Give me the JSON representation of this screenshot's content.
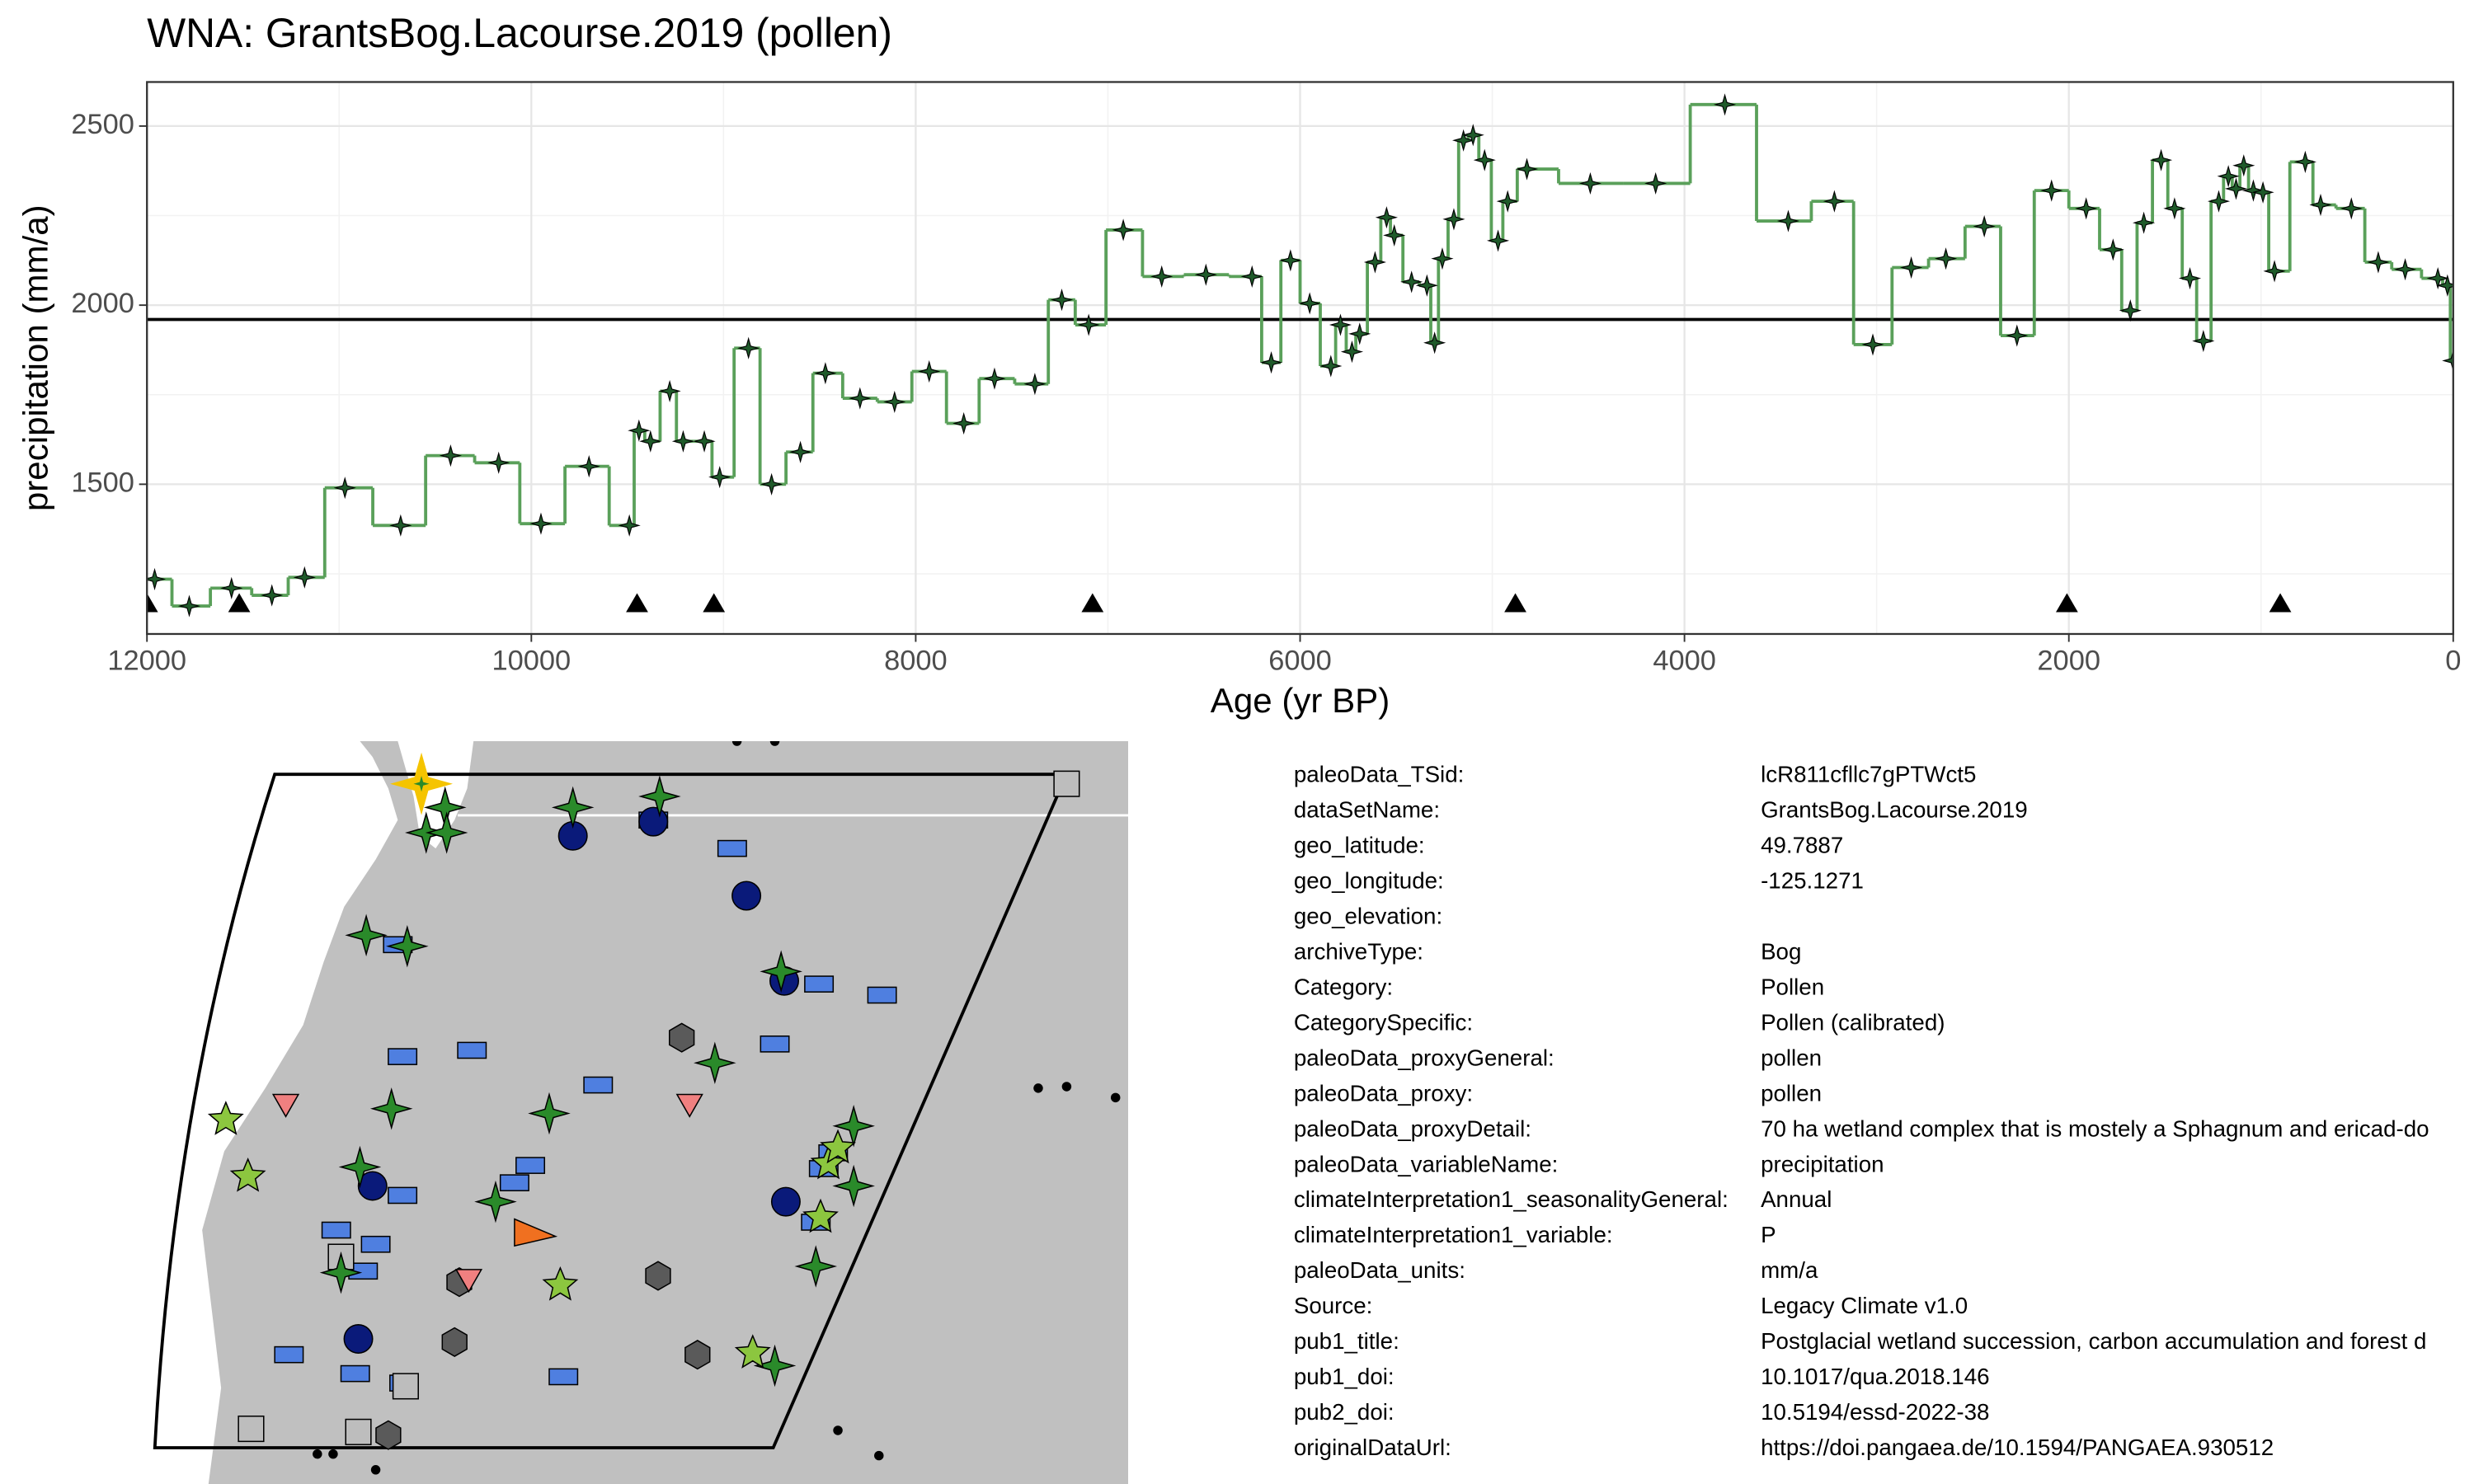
{
  "chart_data": {
    "type": "line",
    "step": true,
    "title": "WNA: GrantsBog.Lacourse.2019 (pollen)",
    "xlabel": "Age (yr BP)",
    "ylabel": "precipitation (mm/a)",
    "color": "#5aa05a",
    "marker_color": "#1f5a2a",
    "x": [
      11960,
      11780,
      11560,
      11350,
      11180,
      10970,
      10680,
      10420,
      10170,
      9950,
      9700,
      9490,
      9440,
      9380,
      9280,
      9210,
      9100,
      9020,
      8870,
      8750,
      8600,
      8470,
      8290,
      8110,
      7930,
      7750,
      7590,
      7380,
      7240,
      7100,
      6920,
      6720,
      6490,
      6250,
      6150,
      6050,
      5950,
      5840,
      5790,
      5730,
      5690,
      5610,
      5550,
      5510,
      5420,
      5340,
      5300,
      5260,
      5200,
      5150,
      5100,
      5040,
      4970,
      4920,
      4820,
      4490,
      4150,
      3790,
      3460,
      3220,
      3020,
      2820,
      2640,
      2440,
      2270,
      2090,
      1910,
      1770,
      1680,
      1610,
      1520,
      1450,
      1370,
      1300,
      1220,
      1170,
      1130,
      1090,
      1040,
      990,
      930,
      770,
      690,
      530,
      390,
      250,
      80,
      30,
      0
    ],
    "values": [
      1235,
      1160,
      1210,
      1190,
      1240,
      1490,
      1385,
      1580,
      1560,
      1390,
      1550,
      1385,
      1650,
      1620,
      1760,
      1620,
      1620,
      1520,
      1880,
      1500,
      1590,
      1810,
      1740,
      1730,
      1815,
      1670,
      1795,
      1780,
      2015,
      1945,
      2210,
      2080,
      2085,
      2080,
      1840,
      2125,
      2005,
      1830,
      1945,
      1870,
      1920,
      2120,
      2245,
      2195,
      2065,
      2055,
      1895,
      2130,
      2240,
      2460,
      2475,
      2405,
      2180,
      2290,
      2380,
      2340,
      2340,
      2560,
      2235,
      2290,
      1890,
      2105,
      2130,
      2220,
      1915,
      2320,
      2270,
      2155,
      1985,
      2230,
      2405,
      2270,
      2075,
      1900,
      2290,
      2360,
      2325,
      2390,
      2320,
      2315,
      2095,
      2400,
      2280,
      2270,
      2120,
      2100,
      2075,
      2055,
      1845
    ],
    "xlim": [
      12000,
      0
    ],
    "ylim": [
      1082,
      2623
    ],
    "xticks": [
      12000,
      10000,
      8000,
      6000,
      4000,
      2000,
      0
    ],
    "yticks": [
      1500,
      2000,
      2500
    ],
    "grid": true,
    "reference_line": 1960,
    "control_points": {
      "x": [
        12000,
        11520,
        9450,
        9050,
        7080,
        4880,
        2010,
        900
      ],
      "y": 1165
    }
  },
  "metadata": {
    "rows": [
      [
        "paleoData_TSid:",
        "lcR811cfllc7gPTWct5"
      ],
      [
        "dataSetName:",
        "GrantsBog.Lacourse.2019"
      ],
      [
        "geo_latitude:",
        "49.7887"
      ],
      [
        "geo_longitude:",
        "-125.1271"
      ],
      [
        "geo_elevation:"
      ],
      [
        "archiveType:",
        "Bog"
      ],
      [
        "Category:",
        "Pollen"
      ],
      [
        "CategorySpecific:",
        "Pollen (calibrated)"
      ],
      [
        "paleoData_proxyGeneral:",
        "pollen"
      ],
      [
        "paleoData_proxy:",
        "pollen"
      ],
      [
        "paleoData_proxyDetail:",
        "70 ha wetland complex that is mostely a Sphagnum and ericad-do"
      ],
      [
        "paleoData_variableName:",
        "precipitation"
      ],
      [
        "climateInterpretation1_seasonalityGeneral:",
        "Annual"
      ],
      [
        "climateInterpretation1_variable:",
        "P"
      ],
      [
        "paleoData_units:",
        "mm/a"
      ],
      [
        "Source:",
        "Legacy Climate v1.0"
      ],
      [
        "pub1_title:",
        "Postglacial wetland succession, carbon accumulation and forest d"
      ],
      [
        "pub1_doi:",
        "10.1017/qua.2018.146"
      ],
      [
        "pub2_doi:",
        "10.5194/essd-2022-38"
      ],
      [
        "originalDataUrl:",
        "https://doi.pangaea.de/10.1594/PANGAEA.930512"
      ]
    ]
  }
}
